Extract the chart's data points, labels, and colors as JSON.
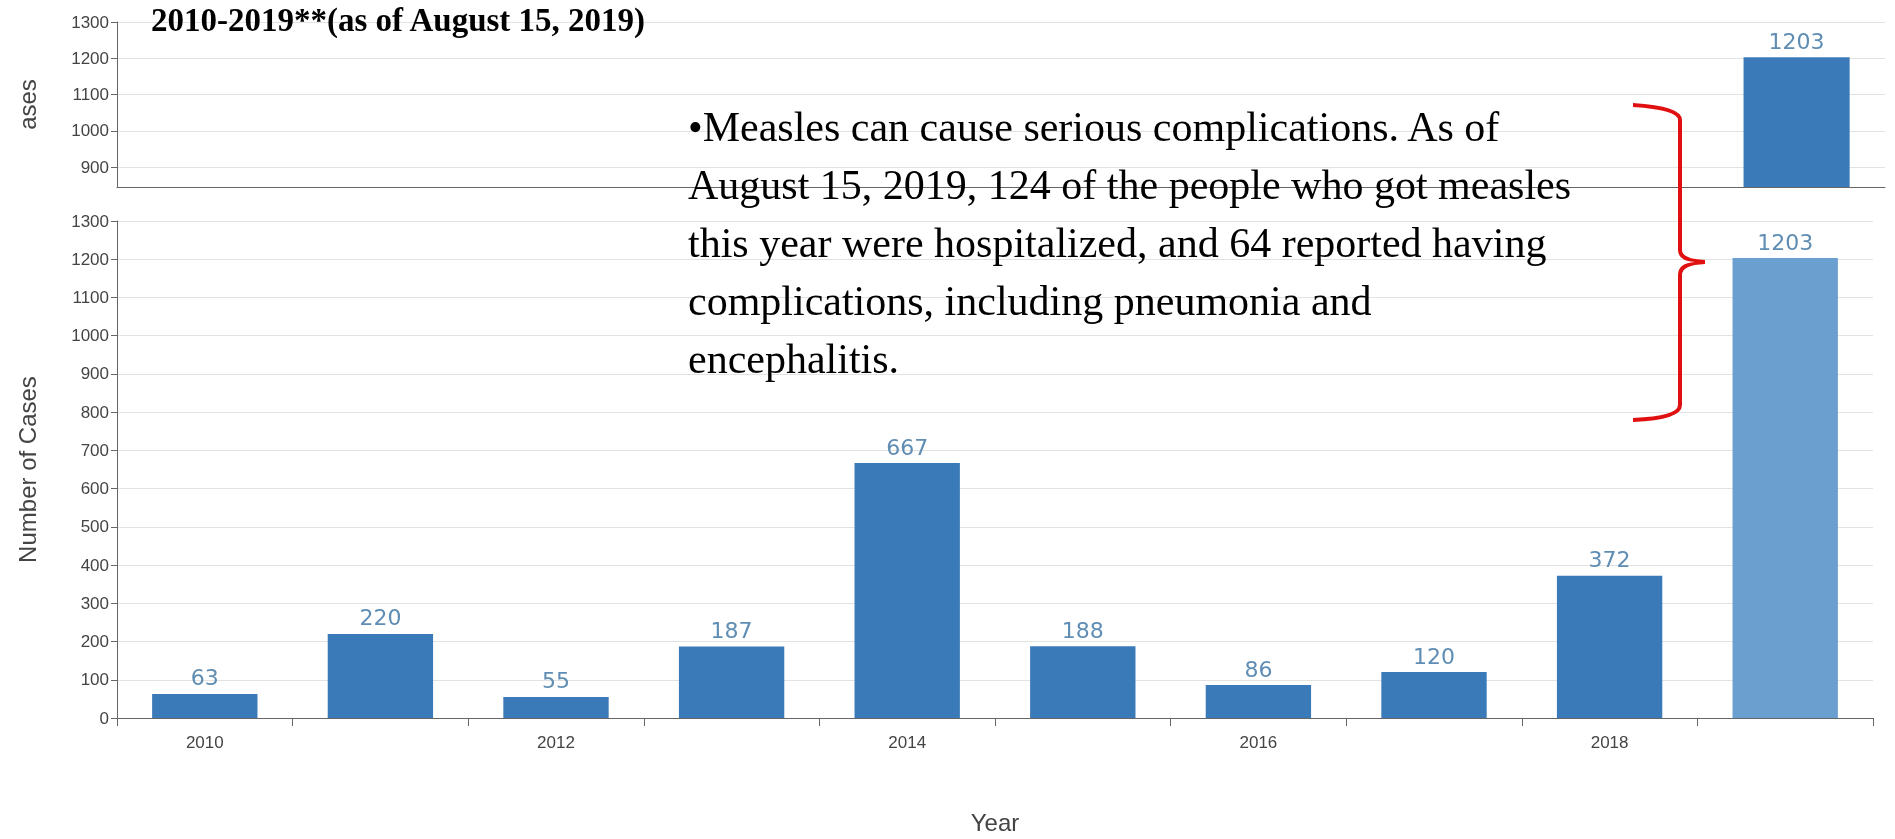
{
  "chart_data": [
    {
      "type": "bar",
      "title": "2010-2019**(as of August 15, 2019)",
      "ylabel": "ases",
      "categories": [
        null,
        null,
        null,
        null,
        null,
        null,
        null,
        null,
        null,
        null
      ],
      "values": [
        null,
        null,
        null,
        null,
        null,
        null,
        null,
        null,
        null,
        1203
      ],
      "color": "#3a7ab8",
      "ylim": [
        845,
        1300
      ],
      "yticks": [
        900,
        1000,
        1100,
        1200,
        1300
      ],
      "grid": "y",
      "data_labels": true,
      "tick_labels": "y"
    },
    {
      "type": "bar",
      "xlabel": "Year",
      "ylabel": "Number of Cases",
      "categories": [
        "2010",
        null,
        "2012",
        null,
        "2014",
        null,
        "2016",
        null,
        "2018",
        null
      ],
      "values": [
        63,
        220,
        55,
        187,
        667,
        188,
        86,
        120,
        372,
        1203
      ],
      "colors": [
        "#3a7ab8",
        "#3a7ab8",
        "#3a7ab8",
        "#3a7ab8",
        "#3a7ab8",
        "#3a7ab8",
        "#3a7ab8",
        "#3a7ab8",
        "#3a7ab8",
        "#6b9fcf"
      ],
      "ylim": [
        0,
        1300
      ],
      "yticks": [
        0,
        100,
        200,
        300,
        400,
        500,
        600,
        700,
        800,
        900,
        1000,
        1100,
        1200,
        1300
      ],
      "grid": "y",
      "data_labels": true,
      "annotations": [
        "•Measles can cause serious complications. As of August 15, 2019, 124 of the people who got measles this year were hospitalized, and 64 reported having complications, including pneumonia and encephalitis."
      ]
    }
  ]
}
